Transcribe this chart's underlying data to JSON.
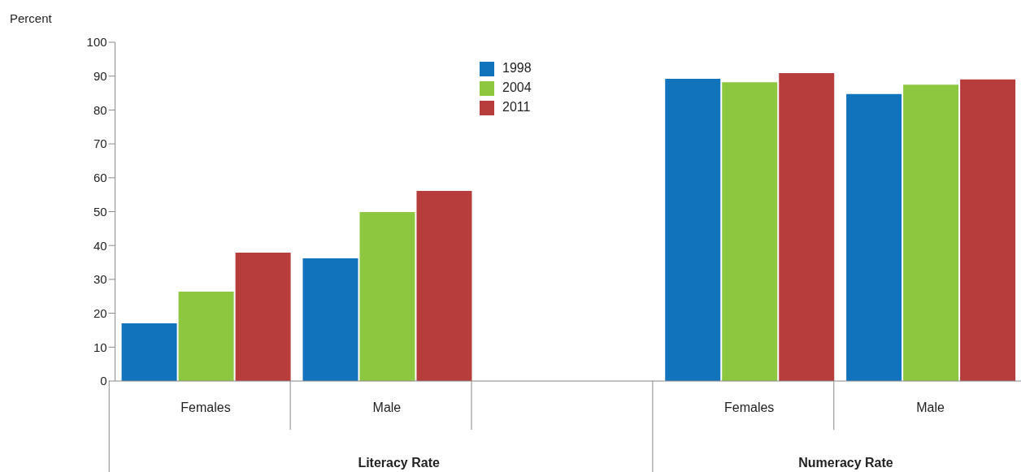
{
  "chart_data": {
    "type": "bar",
    "ylabel": "Percent",
    "categories": [
      "Females",
      "Male",
      null,
      "Females",
      "Male"
    ],
    "series": [
      {
        "name": "1998",
        "color": "#1273bd",
        "values": [
          17.0,
          36.2,
          null,
          89.2,
          84.7
        ]
      },
      {
        "name": "2004",
        "color": "#8dc63f",
        "values": [
          26.4,
          49.9,
          null,
          88.2,
          87.5
        ]
      },
      {
        "name": "2011",
        "color": "#b73c3c",
        "values": [
          37.9,
          56.1,
          null,
          90.9,
          89.0
        ]
      }
    ],
    "annotations": [
      "Literacy Rate",
      "Numeracy Rate"
    ],
    "ylim": [
      0,
      100
    ],
    "yticks": [
      0,
      10,
      20,
      30,
      40,
      50,
      60,
      70,
      80,
      90,
      100
    ],
    "grid": false,
    "legend": "top center"
  }
}
